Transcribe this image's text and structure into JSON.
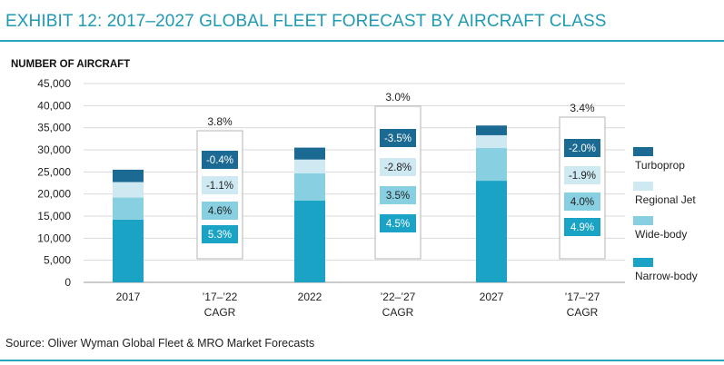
{
  "title": "EXHIBIT 12: 2017–2027 GLOBAL FLEET FORECAST BY AIRCRAFT CLASS",
  "source": "Source: Oliver Wyman Global Fleet & MRO Market Forecasts",
  "colors": {
    "accent": "#1f9ab3",
    "turboprop": "#1b6a93",
    "regional_jet": "#cfe9f2",
    "wide_body": "#88d0e1",
    "narrow_body": "#1ba3c6",
    "box_border": "#b5b5b5"
  },
  "chart_data": {
    "type": "bar",
    "stacked": true,
    "ylabel": "NUMBER OF AIRCRAFT",
    "ylim": [
      0,
      45000
    ],
    "yticks": [
      "0",
      "5,000",
      "10,000",
      "15,000",
      "20,000",
      "25,000",
      "30,000",
      "35,000",
      "40,000",
      "45,000"
    ],
    "grid": true,
    "legend_position": "right",
    "categories": [
      "2017",
      "'17–'22 CAGR",
      "2022",
      "'22–'27 CAGR",
      "2027",
      "'17–'27 CAGR"
    ],
    "x_labels": [
      [
        "2017"
      ],
      [
        "’17–’22",
        "CAGR"
      ],
      [
        "2022"
      ],
      [
        "’22–’27",
        "CAGR"
      ],
      [
        "2027"
      ],
      [
        "’17–’27",
        "CAGR"
      ]
    ],
    "legend": [
      "Turboprop",
      "Regional Jet",
      "Wide-body",
      "Narrow-body"
    ],
    "bars": [
      {
        "category": "2017",
        "narrow_body": 14200,
        "wide_body": 5000,
        "regional_jet": 3500,
        "turboprop": 2800
      },
      {
        "category": "2022",
        "narrow_body": 18500,
        "wide_body": 6200,
        "regional_jet": 3100,
        "turboprop": 2700
      },
      {
        "category": "2027",
        "narrow_body": 23000,
        "wide_body": 7400,
        "regional_jet": 2900,
        "turboprop": 2200
      }
    ],
    "cagr_boxes": [
      {
        "category": "'17–'22 CAGR",
        "total": "3.8%",
        "turboprop": "-0.4%",
        "regional_jet": "-1.1%",
        "wide_body": "4.6%",
        "narrow_body": "5.3%"
      },
      {
        "category": "'22–'27 CAGR",
        "total": "3.0%",
        "turboprop": "-3.5%",
        "regional_jet": "-2.8%",
        "wide_body": "3.5%",
        "narrow_body": "4.5%"
      },
      {
        "category": "'17–'27 CAGR",
        "total": "3.4%",
        "turboprop": "-2.0%",
        "regional_jet": "-1.9%",
        "wide_body": "4.0%",
        "narrow_body": "4.9%"
      }
    ]
  }
}
